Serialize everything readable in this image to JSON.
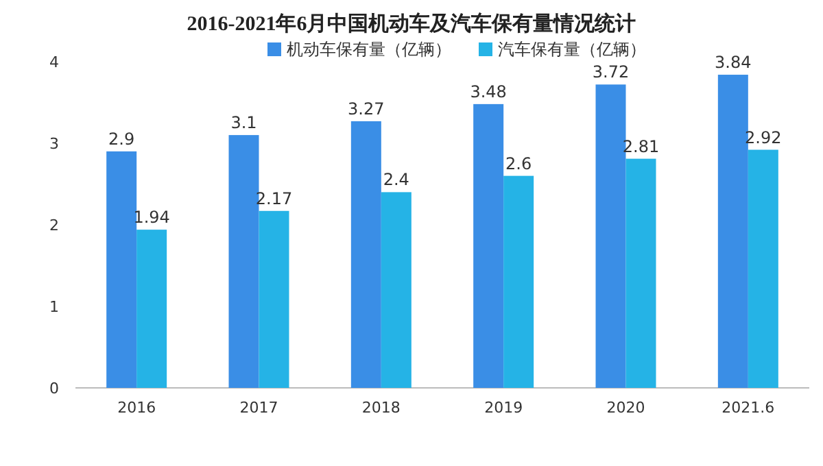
{
  "chart_data": {
    "type": "bar",
    "title": "2016-2021年6月中国机动车及汽车保有量情况统计",
    "categories": [
      "2016",
      "2017",
      "2018",
      "2019",
      "2020",
      "2021.6"
    ],
    "series": [
      {
        "name": "机动车保有量（亿辆）",
        "color": "#3a8ee6",
        "values": [
          2.9,
          3.1,
          3.27,
          3.48,
          3.72,
          3.84
        ]
      },
      {
        "name": "汽车保有量（亿辆）",
        "color": "#25b3e6",
        "values": [
          1.94,
          2.17,
          2.4,
          2.6,
          2.81,
          2.92
        ]
      }
    ],
    "ylim": [
      0,
      4
    ],
    "yticks": [
      0,
      1,
      2,
      3,
      4
    ],
    "legend": "top",
    "data_labels": true
  }
}
